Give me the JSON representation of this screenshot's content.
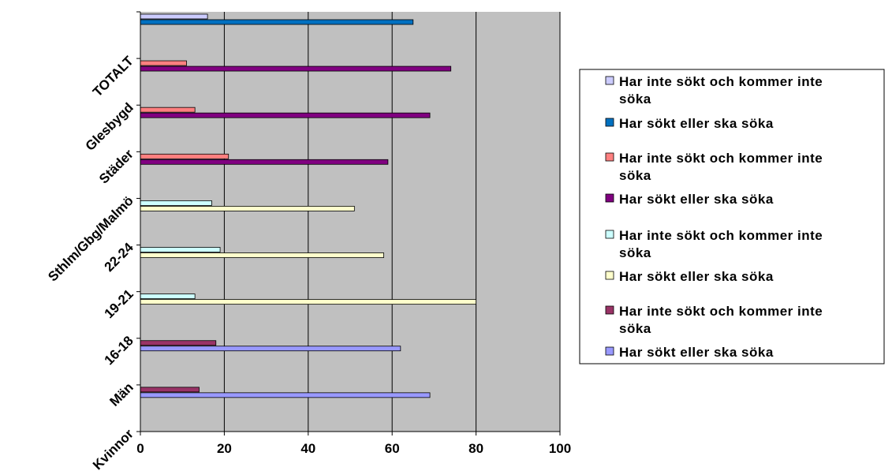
{
  "chart_data": {
    "type": "bar",
    "orientation": "horizontal",
    "categories": [
      "Kvinnor",
      "Män",
      "16-18",
      "19-21",
      "22-24",
      "Sthlm/Gbg/Malmö",
      "Städer",
      "Glesbygd",
      "TOTALT"
    ],
    "xlim": [
      0,
      100
    ],
    "xticks": [
      "0",
      "20",
      "40",
      "60",
      "80",
      "100"
    ],
    "grid": true,
    "legend_position": "right",
    "series": [
      {
        "name": "Har inte sökt och kommer inte söka",
        "color": "#993366",
        "group": 0,
        "values": [
          14,
          18,
          null,
          null,
          null,
          null,
          null,
          null,
          null
        ]
      },
      {
        "name": "Har sökt eller ska söka",
        "color": "#9999ff",
        "group": 0,
        "values": [
          69,
          62,
          null,
          null,
          null,
          null,
          null,
          null,
          null
        ]
      },
      {
        "name": "Har inte sökt och kommer inte söka",
        "color": "#ccffff",
        "group": 1,
        "values": [
          null,
          null,
          13,
          19,
          17,
          null,
          null,
          null,
          null
        ]
      },
      {
        "name": "Har sökt eller ska söka",
        "color": "#ffffcc",
        "group": 1,
        "values": [
          null,
          null,
          80,
          58,
          51,
          null,
          null,
          null,
          null
        ]
      },
      {
        "name": "Har inte sökt och kommer inte söka",
        "color": "#ff8080",
        "group": 2,
        "values": [
          null,
          null,
          null,
          null,
          null,
          21,
          13,
          11,
          null
        ]
      },
      {
        "name": "Har sökt eller ska söka",
        "color": "#800080",
        "group": 2,
        "values": [
          null,
          null,
          null,
          null,
          null,
          59,
          69,
          74,
          null
        ]
      },
      {
        "name": "Har inte sökt och kommer inte söka",
        "color": "#ccccff",
        "group": 3,
        "values": [
          null,
          null,
          null,
          null,
          null,
          null,
          null,
          null,
          16
        ]
      },
      {
        "name": "Har sökt eller ska söka",
        "color": "#0070c0",
        "group": 3,
        "values": [
          null,
          null,
          null,
          null,
          null,
          null,
          null,
          null,
          65
        ]
      }
    ],
    "legend": [
      {
        "text": [
          "Har inte sökt och kommer inte",
          "söka"
        ],
        "color": "#ccccff"
      },
      {
        "text": [
          "Har sökt eller ska söka"
        ],
        "color": "#0070c0"
      },
      {
        "text": [
          "Har inte sökt och kommer inte",
          "söka"
        ],
        "color": "#ff8080"
      },
      {
        "text": [
          "Har sökt eller ska söka"
        ],
        "color": "#800080"
      },
      {
        "text": [
          "Har inte sökt och kommer inte",
          "söka"
        ],
        "color": "#ccffff"
      },
      {
        "text": [
          "Har sökt eller ska söka"
        ],
        "color": "#ffffcc"
      },
      {
        "text": [
          "Har inte sökt och kommer inte",
          "söka"
        ],
        "color": "#993366"
      },
      {
        "text": [
          "Har sökt eller ska söka"
        ],
        "color": "#9999ff"
      }
    ]
  }
}
